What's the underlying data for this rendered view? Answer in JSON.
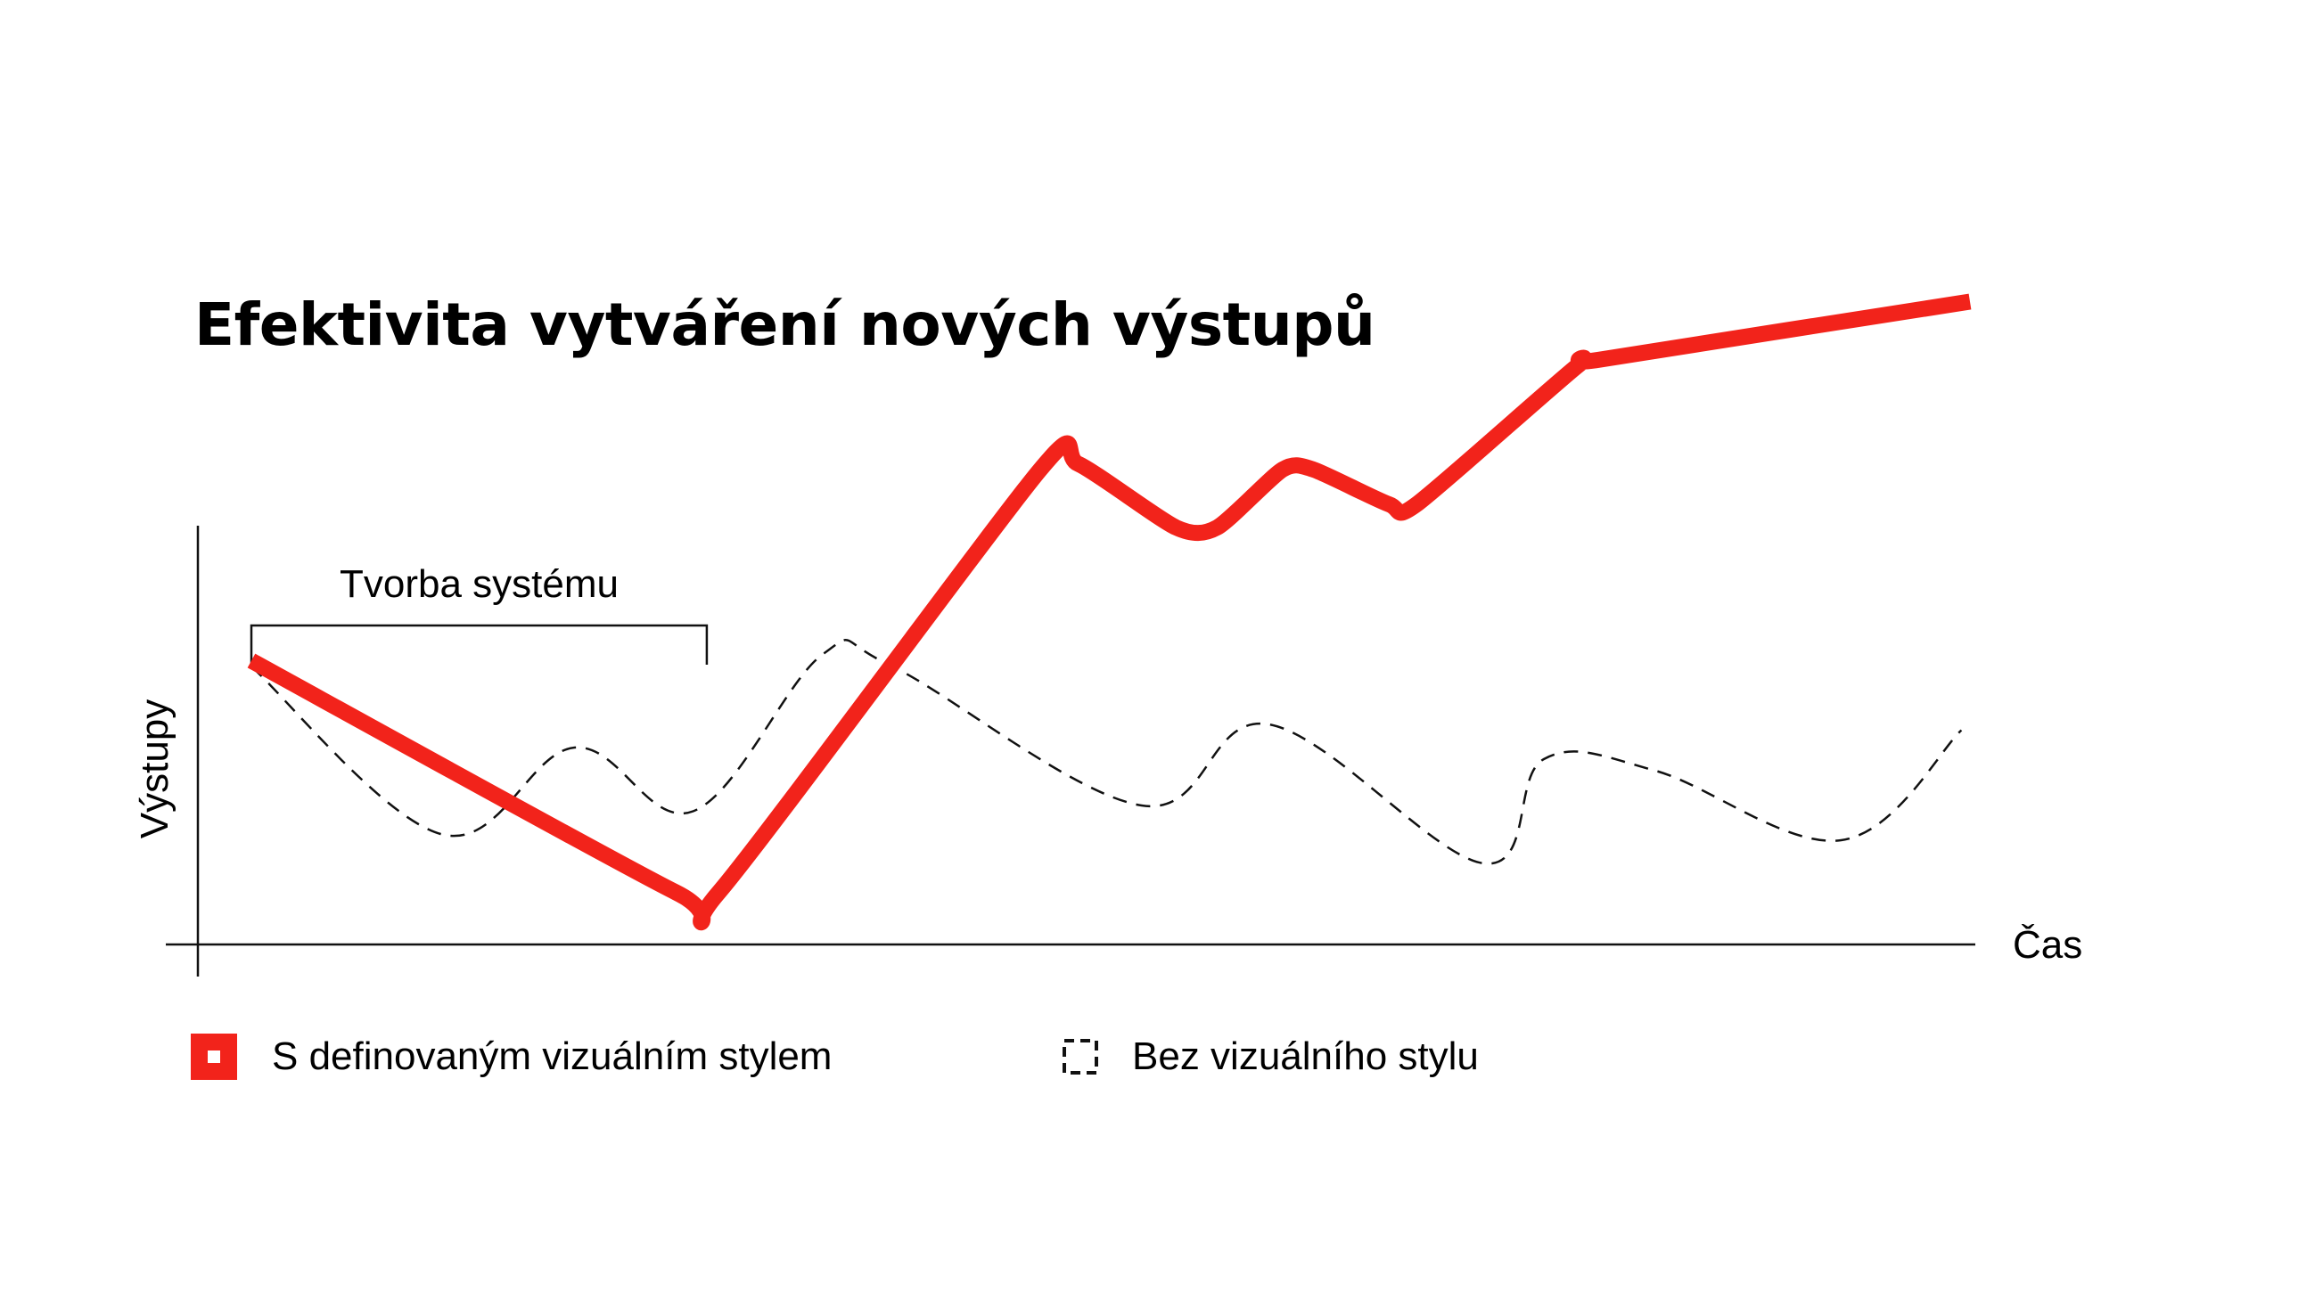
{
  "chart_data": {
    "type": "line",
    "title": "Efektivita vytváření nových výstupů",
    "xlabel": "Čas",
    "ylabel": "Výstupy",
    "xlim": [
      0,
      100
    ],
    "ylim": [
      0,
      100
    ],
    "grid": false,
    "legend_position": "bottom-left",
    "annotation": {
      "text": "Tvorba systému",
      "x_start": 0,
      "x_end": 26.5
    },
    "series": [
      {
        "name": "S definovaným vizuálním stylem",
        "color": "#f2231b",
        "style": "solid",
        "x": [
          0,
          24.7,
          27.2,
          45.9,
          48.1,
          53.8,
          56.2,
          60.0,
          61.8,
          66.2,
          67.8,
          77.2,
          78.5,
          100
        ],
        "y": [
          49,
          9,
          9,
          82,
          83,
          72,
          72,
          82,
          82,
          76,
          76,
          100,
          101,
          111
        ]
      },
      {
        "name": "Bez vizuálního stylu",
        "color": "#111111",
        "style": "dashed",
        "x": [
          0,
          11.1,
          18.8,
          25.7,
          33.2,
          37.3,
          51.8,
          59.2,
          71.7,
          75.2,
          81.7,
          92.5,
          99.5
        ],
        "y": [
          48,
          19,
          34,
          23,
          50,
          48,
          24,
          38,
          14,
          32,
          30,
          18,
          37
        ]
      }
    ]
  },
  "legend": {
    "items": [
      {
        "label": "S definovaným vizuálním stylem",
        "icon": "red-filled-square-icon",
        "color": "#f2231b"
      },
      {
        "label": "Bez vizuálního stylu",
        "icon": "dashed-square-icon",
        "color": "#111111"
      }
    ]
  }
}
